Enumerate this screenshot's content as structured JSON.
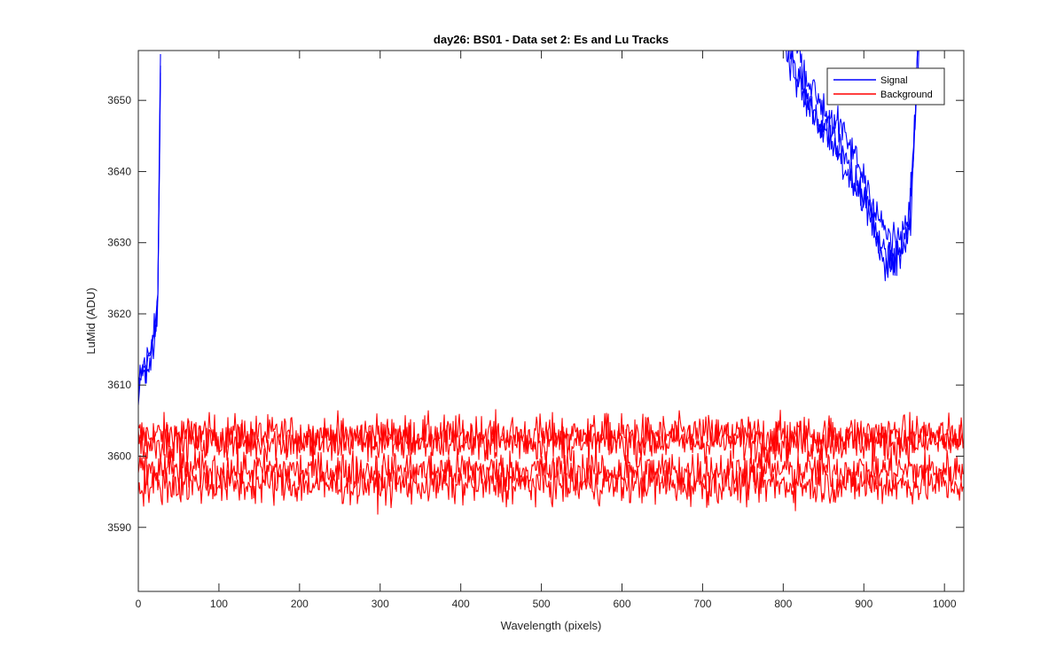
{
  "chart_data": {
    "type": "line",
    "title": "day26: BS01 - Data set 2: Es and Lu Tracks",
    "xlabel": "Wavelength (pixels)",
    "ylabel": "LuMid (ADU)",
    "xlim": [
      0,
      1024
    ],
    "ylim": [
      3581,
      3657
    ],
    "xticks": [
      0,
      100,
      200,
      300,
      400,
      500,
      600,
      700,
      800,
      900,
      1000
    ],
    "yticks": [
      3590,
      3600,
      3610,
      3620,
      3630,
      3640,
      3650
    ],
    "grid": false,
    "legend_position": "top-right",
    "legend": [
      {
        "label": "Signal",
        "color": "#0000ff"
      },
      {
        "label": "Background",
        "color": "#ff0000"
      }
    ],
    "series": [
      {
        "name": "Signal",
        "color": "#0000ff",
        "role": "trace",
        "noise": 1.2,
        "x": [
          0,
          5,
          10,
          15,
          20,
          24,
          26,
          28
        ],
        "y": [
          3607,
          3612,
          3613,
          3614,
          3617,
          3622,
          3640,
          3660
        ]
      },
      {
        "name": "Signal",
        "color": "#0000ff",
        "role": "trace",
        "noise": 1.2,
        "x": [
          0,
          5,
          10,
          15,
          20,
          24,
          26,
          28
        ],
        "y": [
          3609,
          3614,
          3611,
          3615,
          3616,
          3621,
          3638,
          3660
        ]
      },
      {
        "name": "Signal",
        "color": "#0000ff",
        "role": "trace",
        "noise": 1.2,
        "x": [
          0,
          5,
          10,
          15,
          20,
          24,
          26,
          28
        ],
        "y": [
          3611,
          3613,
          3612,
          3613,
          3618,
          3620,
          3642,
          3660
        ]
      },
      {
        "name": "Signal",
        "color": "#0000ff",
        "role": "trace",
        "noise": 1.3,
        "x": [
          800,
          820,
          840,
          860,
          880,
          900,
          915,
          930,
          945,
          955,
          962,
          968
        ],
        "y": [
          3658,
          3652,
          3648,
          3645,
          3641,
          3636,
          3631,
          3627,
          3628,
          3631,
          3645,
          3660
        ]
      },
      {
        "name": "Signal",
        "color": "#0000ff",
        "role": "trace",
        "noise": 1.3,
        "x": [
          808,
          825,
          845,
          865,
          885,
          905,
          918,
          932,
          946,
          956,
          963,
          968
        ],
        "y": [
          3658,
          3651,
          3647,
          3643,
          3639,
          3635,
          3630,
          3628,
          3629,
          3632,
          3646,
          3660
        ]
      },
      {
        "name": "Signal",
        "color": "#0000ff",
        "role": "trace",
        "noise": 1.3,
        "x": [
          815,
          830,
          850,
          870,
          890,
          908,
          920,
          935,
          948,
          958,
          964,
          969
        ],
        "y": [
          3658,
          3653,
          3649,
          3646,
          3642,
          3637,
          3633,
          3630,
          3631,
          3634,
          3647,
          3660
        ]
      },
      {
        "name": "Background",
        "color": "#ff0000",
        "role": "trace",
        "noise": 1.4,
        "x": [
          0,
          1024
        ],
        "y": [
          3603,
          3603
        ]
      },
      {
        "name": "Background",
        "color": "#ff0000",
        "role": "trace",
        "noise": 1.4,
        "x": [
          0,
          1024
        ],
        "y": [
          3602,
          3602
        ]
      },
      {
        "name": "Background",
        "color": "#ff0000",
        "role": "trace",
        "noise": 1.4,
        "x": [
          0,
          1024
        ],
        "y": [
          3598,
          3598
        ]
      },
      {
        "name": "Background",
        "color": "#ff0000",
        "role": "trace",
        "noise": 1.4,
        "x": [
          0,
          1024
        ],
        "y": [
          3596,
          3596
        ]
      }
    ]
  }
}
